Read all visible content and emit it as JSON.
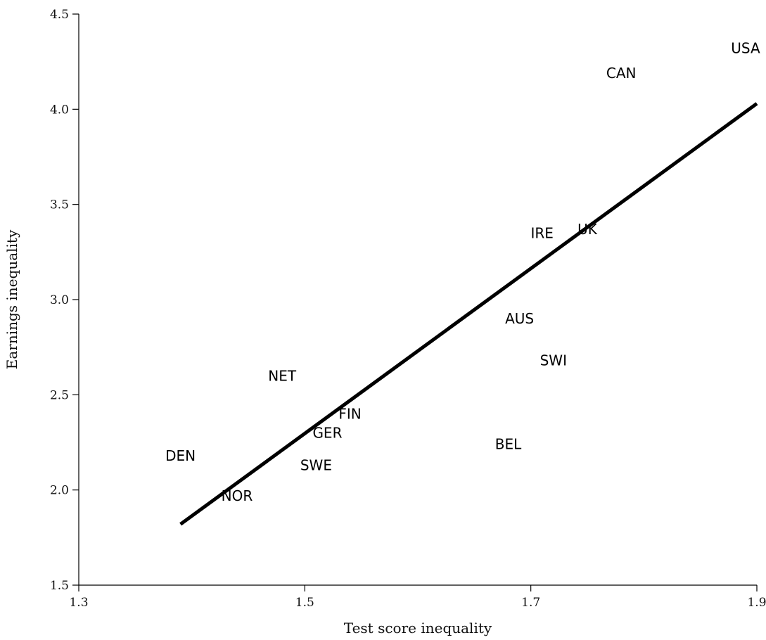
{
  "chart_data": {
    "type": "scatter",
    "title": "",
    "xlabel": "Test score inequality",
    "ylabel": "Earnings inequality",
    "xlim": [
      1.3,
      1.9
    ],
    "ylim": [
      1.5,
      4.5
    ],
    "x_ticks": [
      1.3,
      1.5,
      1.7,
      1.9
    ],
    "x_tick_labels": [
      "1.3",
      "1.5",
      "1.7",
      "1.9"
    ],
    "y_ticks": [
      1.5,
      2.0,
      2.5,
      3.0,
      3.5,
      4.0,
      4.5
    ],
    "y_tick_labels": [
      "1.5",
      "2.0",
      "2.5",
      "3.0",
      "3.5",
      "4.0",
      "4.5"
    ],
    "grid": false,
    "points": [
      {
        "label": "USA",
        "x": 1.89,
        "y": 4.32
      },
      {
        "label": "CAN",
        "x": 1.78,
        "y": 4.19
      },
      {
        "label": "IRE",
        "x": 1.71,
        "y": 3.35
      },
      {
        "label": "UK",
        "x": 1.75,
        "y": 3.37
      },
      {
        "label": "AUS",
        "x": 1.69,
        "y": 2.9
      },
      {
        "label": "SWI",
        "x": 1.72,
        "y": 2.68
      },
      {
        "label": "NET",
        "x": 1.48,
        "y": 2.6
      },
      {
        "label": "FIN",
        "x": 1.54,
        "y": 2.4
      },
      {
        "label": "GER",
        "x": 1.52,
        "y": 2.3
      },
      {
        "label": "BEL",
        "x": 1.68,
        "y": 2.24
      },
      {
        "label": "DEN",
        "x": 1.39,
        "y": 2.18
      },
      {
        "label": "SWE",
        "x": 1.51,
        "y": 2.13
      },
      {
        "label": "NOR",
        "x": 1.44,
        "y": 1.97
      }
    ],
    "fit_line": {
      "x": [
        1.39,
        1.9
      ],
      "y": [
        1.82,
        4.03
      ]
    }
  }
}
